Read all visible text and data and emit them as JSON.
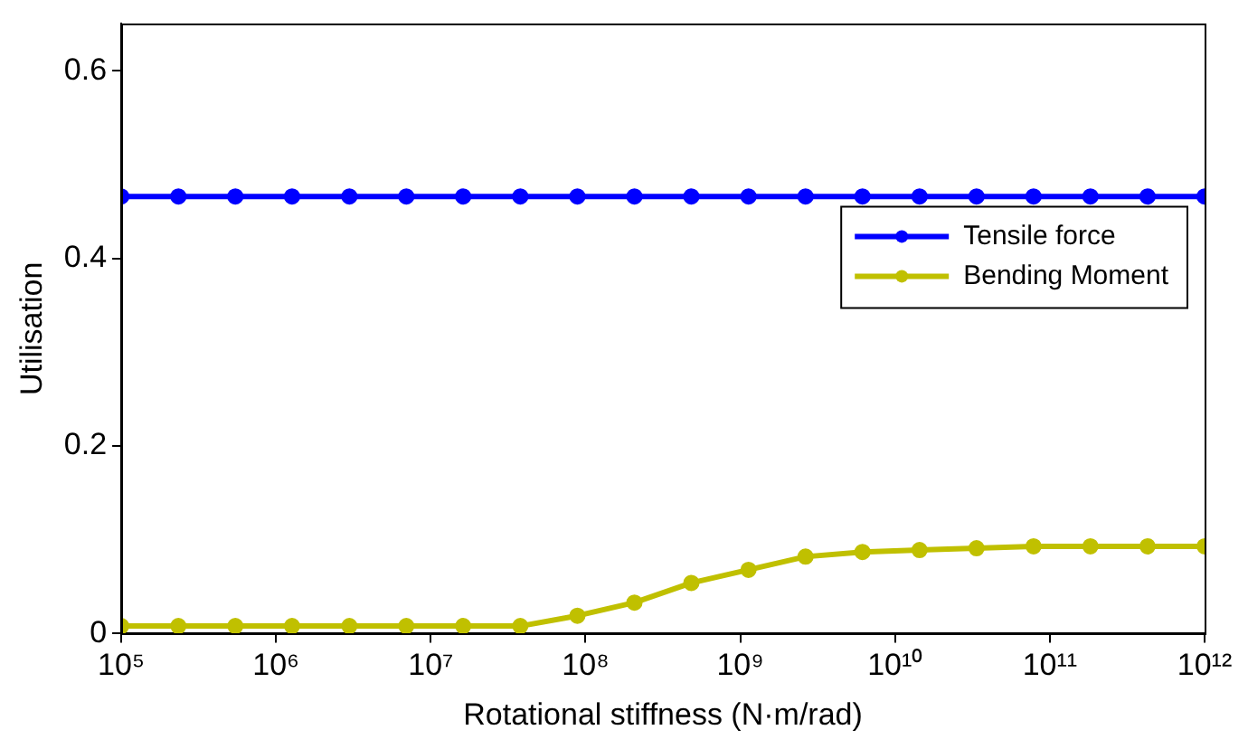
{
  "chart_data": {
    "type": "line",
    "xlabel": "Rotational stiffness (N·m/rad)",
    "ylabel": "Utilisation",
    "x": [
      100000,
      234000,
      546000,
      1270000,
      2980000,
      6950000,
      16200000,
      37900000,
      88600000,
      207000000,
      483000000,
      1130000000,
      2640000000,
      6160000000,
      14400000000,
      33600000000,
      78500000000,
      183000000000,
      428000000000,
      1000000000000
    ],
    "series": [
      {
        "name": "Tensile force",
        "color": "#0000ff",
        "values": [
          0.466,
          0.466,
          0.466,
          0.466,
          0.466,
          0.466,
          0.466,
          0.466,
          0.466,
          0.466,
          0.466,
          0.466,
          0.466,
          0.466,
          0.466,
          0.466,
          0.466,
          0.466,
          0.466,
          0.466
        ]
      },
      {
        "name": "Bending Moment",
        "color": "#c0c000",
        "values": [
          0.008,
          0.008,
          0.008,
          0.008,
          0.008,
          0.008,
          0.008,
          0.008,
          0.019,
          0.033,
          0.054,
          0.068,
          0.082,
          0.087,
          0.089,
          0.091,
          0.093,
          0.093,
          0.093,
          0.093
        ]
      }
    ],
    "log": "x",
    "xlim": [
      100000,
      1000000000000
    ],
    "xticks": [
      {
        "value": 100000,
        "label": "10⁵"
      },
      {
        "value": 1000000,
        "label": "10⁶"
      },
      {
        "value": 10000000,
        "label": "10⁷"
      },
      {
        "value": 100000000,
        "label": "10⁸"
      },
      {
        "value": 1000000000,
        "label": "10⁹"
      },
      {
        "value": 10000000000,
        "label": "10¹⁰"
      },
      {
        "value": 100000000000,
        "label": "10¹¹"
      },
      {
        "value": 1000000000000,
        "label": "10¹²"
      }
    ],
    "ylim": [
      0,
      0.65
    ],
    "yticks": [
      0,
      0.2,
      0.4,
      0.6
    ],
    "grid": false,
    "legend": "right",
    "marker": "circle",
    "line_style": "solid"
  }
}
